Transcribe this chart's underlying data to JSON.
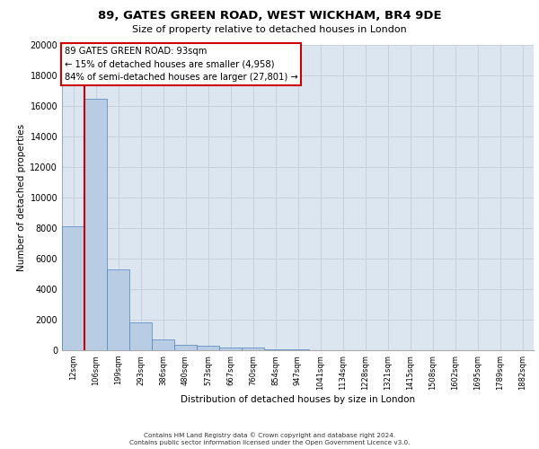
{
  "title1": "89, GATES GREEN ROAD, WEST WICKHAM, BR4 9DE",
  "title2": "Size of property relative to detached houses in London",
  "xlabel": "Distribution of detached houses by size in London",
  "ylabel": "Number of detached properties",
  "categories": [
    "12sqm",
    "106sqm",
    "199sqm",
    "293sqm",
    "386sqm",
    "480sqm",
    "573sqm",
    "667sqm",
    "760sqm",
    "854sqm",
    "947sqm",
    "1041sqm",
    "1134sqm",
    "1228sqm",
    "1321sqm",
    "1415sqm",
    "1508sqm",
    "1602sqm",
    "1695sqm",
    "1789sqm",
    "1882sqm"
  ],
  "values": [
    8100,
    16500,
    5300,
    1850,
    700,
    370,
    280,
    200,
    150,
    80,
    40,
    20,
    10,
    5,
    3,
    2,
    1,
    1,
    1,
    1,
    1
  ],
  "bar_color": "#b8cce4",
  "bar_edge_color": "#4f81bd",
  "vline_color": "#cc0000",
  "vline_x_index": 0.5,
  "annotation_text": "89 GATES GREEN ROAD: 93sqm\n← 15% of detached houses are smaller (4,958)\n84% of semi-detached houses are larger (27,801) →",
  "ylim_max": 20000,
  "yticks": [
    0,
    2000,
    4000,
    6000,
    8000,
    10000,
    12000,
    14000,
    16000,
    18000,
    20000
  ],
  "grid_color": "#c8d0da",
  "bg_color": "#dce6f1",
  "footer1": "Contains HM Land Registry data © Crown copyright and database right 2024.",
  "footer2": "Contains public sector information licensed under the Open Government Licence v3.0."
}
